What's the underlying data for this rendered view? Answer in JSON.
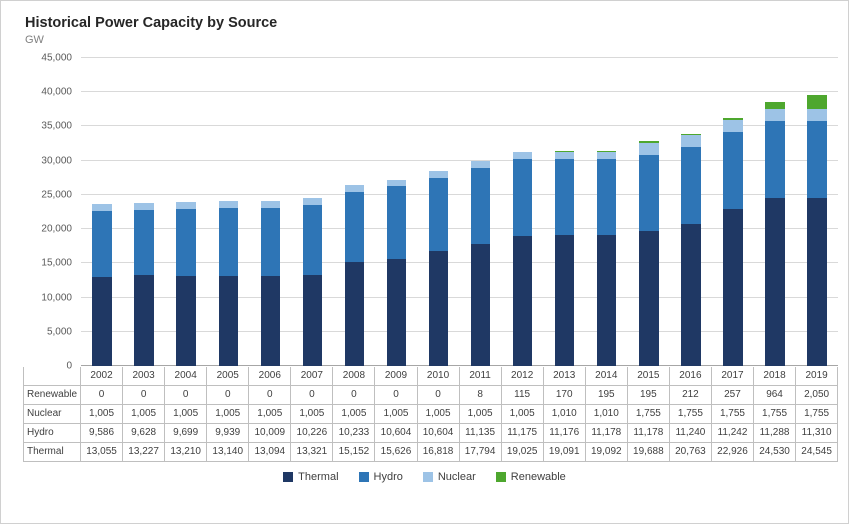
{
  "header": {
    "title": "Historical Power Capacity by Source",
    "units_label": "GW"
  },
  "chart_data": {
    "type": "bar",
    "stacked": true,
    "title": "Historical Power Capacity by Source",
    "ylabel": "GW",
    "xlabel": "",
    "grid": true,
    "legend_position": "bottom",
    "ylim": [
      0,
      45000
    ],
    "ytick_step": 5000,
    "ytick_labels": [
      "0",
      "5,000",
      "10,000",
      "15,000",
      "20,000",
      "25,000",
      "30,000",
      "35,000",
      "40,000",
      "45,000"
    ],
    "categories": [
      "2002",
      "2003",
      "2004",
      "2005",
      "2006",
      "2007",
      "2008",
      "2009",
      "2010",
      "2011",
      "2012",
      "2013",
      "2014",
      "2015",
      "2016",
      "2017",
      "2018",
      "2019"
    ],
    "series": [
      {
        "name": "Thermal",
        "color": "#1f3864",
        "values": [
          13055,
          13227,
          13210,
          13140,
          13094,
          13321,
          15152,
          15626,
          16818,
          17794,
          19025,
          19091,
          19092,
          19688,
          20763,
          22926,
          24530,
          24545
        ]
      },
      {
        "name": "Hydro",
        "color": "#2e75b6",
        "values": [
          9586,
          9628,
          9699,
          9939,
          10009,
          10226,
          10233,
          10604,
          10604,
          11135,
          11175,
          11176,
          11178,
          11178,
          11240,
          11242,
          11288,
          11310
        ]
      },
      {
        "name": "Nuclear",
        "color": "#9dc3e6",
        "values": [
          1005,
          1005,
          1005,
          1005,
          1005,
          1005,
          1005,
          1005,
          1005,
          1005,
          1005,
          1010,
          1010,
          1755,
          1755,
          1755,
          1755,
          1755
        ]
      },
      {
        "name": "Renewable",
        "color": "#4ea72e",
        "values": [
          0,
          0,
          0,
          0,
          0,
          0,
          0,
          0,
          0,
          8,
          115,
          170,
          195,
          195,
          212,
          257,
          964,
          2050
        ]
      }
    ],
    "table_row_order": [
      "Renewable",
      "Nuclear",
      "Hydro",
      "Thermal"
    ]
  }
}
